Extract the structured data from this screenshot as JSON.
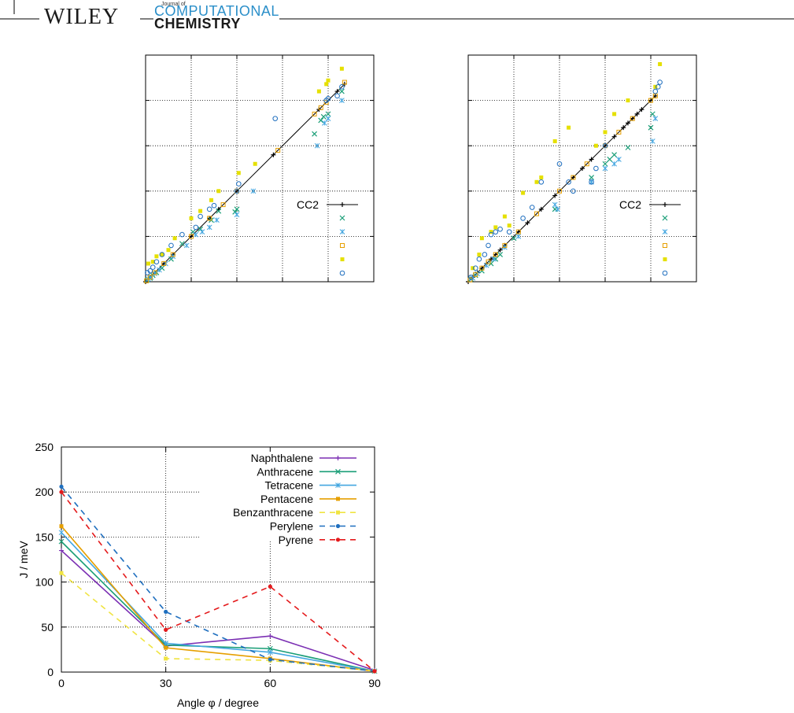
{
  "header": {
    "publisher": "WILEY",
    "journal_small": "Journal of",
    "journal_line1": "OMPUTATIONAL",
    "journal_line2": "HEMISTRY",
    "journal_initial": "C"
  },
  "chart_data": [
    {
      "type": "scatter",
      "title": "",
      "xlabel": "",
      "ylabel": "",
      "xlim": [
        0,
        250
      ],
      "ylim": [
        0,
        250
      ],
      "grid": true,
      "series": [
        {
          "name": "CC2",
          "kind": "line",
          "color": "#000000",
          "x": [
            0,
            5,
            10,
            20,
            30,
            50,
            70,
            80,
            100,
            140,
            190,
            210,
            218
          ],
          "y": [
            0,
            5,
            10,
            20,
            30,
            50,
            70,
            80,
            100,
            140,
            190,
            210,
            218
          ]
        },
        {
          "marker": "x",
          "color": "#1a9e77",
          "x": [
            2,
            5,
            8,
            12,
            18,
            28,
            40,
            52,
            60,
            72,
            80,
            98,
            100,
            185,
            192,
            195,
            200,
            215
          ],
          "y": [
            2,
            4,
            7,
            10,
            15,
            25,
            42,
            55,
            58,
            68,
            78,
            77,
            80,
            163,
            178,
            182,
            185,
            210
          ]
        },
        {
          "marker": "*",
          "color": "#43a6e0",
          "x": [
            3,
            6,
            10,
            15,
            22,
            30,
            45,
            55,
            62,
            70,
            78,
            100,
            118,
            188,
            196,
            200,
            215
          ],
          "y": [
            3,
            5,
            9,
            13,
            20,
            28,
            40,
            52,
            55,
            60,
            68,
            74,
            100,
            150,
            175,
            180,
            200
          ]
        },
        {
          "marker": "square-open",
          "color": "#e69f00",
          "x": [
            1,
            5,
            10,
            20,
            30,
            50,
            70,
            85,
            100,
            145,
            185,
            192,
            198,
            218
          ],
          "y": [
            1,
            5,
            10,
            20,
            30,
            50,
            70,
            85,
            100,
            145,
            185,
            192,
            198,
            220
          ]
        },
        {
          "marker": "square-filled",
          "color": "#e5e000",
          "x": [
            3,
            8,
            12,
            18,
            25,
            32,
            50,
            60,
            72,
            80,
            102,
            120,
            190,
            198,
            200,
            215
          ],
          "y": [
            20,
            22,
            28,
            30,
            35,
            48,
            70,
            78,
            90,
            100,
            120,
            130,
            210,
            218,
            222,
            235
          ]
        },
        {
          "marker": "circle-open",
          "color": "#1f6fbf",
          "x": [
            2,
            5,
            8,
            12,
            18,
            28,
            40,
            55,
            60,
            70,
            75,
            100,
            102,
            142,
            198,
            200,
            210,
            215
          ],
          "y": [
            10,
            12,
            16,
            22,
            30,
            40,
            52,
            60,
            72,
            80,
            84,
            100,
            108,
            180,
            200,
            202,
            205,
            215
          ]
        }
      ]
    },
    {
      "type": "scatter",
      "title": "",
      "xlabel": "",
      "ylabel": "",
      "xlim": [
        0,
        250
      ],
      "ylim": [
        0,
        250
      ],
      "grid": true,
      "series": [
        {
          "name": "CC2",
          "kind": "line",
          "color": "#000000",
          "x": [
            0,
            5,
            10,
            15,
            20,
            25,
            30,
            35,
            40,
            55,
            65,
            80,
            95,
            115,
            125,
            135,
            150,
            160,
            170,
            175,
            180,
            185,
            190,
            200,
            205
          ],
          "y": [
            0,
            5,
            10,
            15,
            20,
            25,
            30,
            35,
            40,
            55,
            65,
            80,
            95,
            115,
            125,
            135,
            150,
            160,
            170,
            175,
            180,
            185,
            190,
            200,
            205
          ]
        },
        {
          "marker": "x",
          "color": "#1a9e77",
          "x": [
            3,
            8,
            15,
            25,
            30,
            35,
            50,
            95,
            135,
            150,
            155,
            160,
            175,
            200,
            202
          ],
          "y": [
            3,
            7,
            12,
            20,
            25,
            30,
            48,
            80,
            115,
            130,
            135,
            140,
            148,
            170,
            185
          ]
        },
        {
          "marker": "*",
          "color": "#43a6e0",
          "x": [
            5,
            10,
            20,
            28,
            40,
            55,
            95,
            98,
            135,
            150,
            160,
            165,
            202,
            205
          ],
          "y": [
            4,
            9,
            18,
            25,
            38,
            50,
            85,
            80,
            110,
            125,
            130,
            135,
            155,
            180
          ]
        },
        {
          "marker": "square-open",
          "color": "#e69f00",
          "x": [
            2,
            8,
            15,
            22,
            30,
            40,
            55,
            75,
            100,
            115,
            130,
            150,
            165,
            180,
            200,
            205
          ],
          "y": [
            2,
            8,
            15,
            22,
            30,
            40,
            55,
            75,
            100,
            115,
            130,
            150,
            165,
            180,
            200,
            205
          ]
        },
        {
          "marker": "square-filled",
          "color": "#e5e000",
          "x": [
            5,
            12,
            15,
            25,
            30,
            40,
            45,
            60,
            75,
            80,
            95,
            110,
            140,
            150,
            160,
            175,
            205,
            210
          ],
          "y": [
            15,
            30,
            48,
            55,
            60,
            72,
            62,
            98,
            110,
            115,
            155,
            170,
            150,
            165,
            185,
            200,
            215,
            240
          ]
        },
        {
          "marker": "circle-open",
          "color": "#1f6fbf",
          "x": [
            3,
            8,
            12,
            18,
            22,
            25,
            30,
            35,
            45,
            60,
            70,
            80,
            100,
            110,
            115,
            135,
            140,
            150,
            205,
            208,
            210
          ],
          "y": [
            5,
            15,
            25,
            30,
            40,
            52,
            55,
            58,
            55,
            70,
            82,
            110,
            130,
            110,
            100,
            110,
            125,
            150,
            210,
            215,
            220
          ]
        }
      ]
    },
    {
      "type": "line",
      "title": "",
      "xlabel": "Angle φ / degree",
      "ylabel": "J / meV",
      "x": [
        0,
        30,
        60,
        90
      ],
      "xticks": [
        "0",
        "30",
        "60",
        "90"
      ],
      "yticks": [
        "0",
        "50",
        "100",
        "150",
        "200",
        "250"
      ],
      "xlim": [
        0,
        90
      ],
      "ylim": [
        0,
        250
      ],
      "grid": true,
      "legend_position": "top-right",
      "series": [
        {
          "name": "Naphthalene",
          "color": "#7b2fb3",
          "dash": "solid",
          "marker": "+",
          "values": [
            135,
            29,
            40,
            2
          ]
        },
        {
          "name": "Anthracene",
          "color": "#1a9e77",
          "dash": "solid",
          "marker": "x",
          "values": [
            145,
            30,
            26,
            1
          ]
        },
        {
          "name": "Tetracene",
          "color": "#43a6e0",
          "dash": "solid",
          "marker": "*",
          "values": [
            155,
            32,
            22,
            1
          ]
        },
        {
          "name": "Pentacene",
          "color": "#e69f00",
          "dash": "solid",
          "marker": "square",
          "values": [
            162,
            27,
            15,
            1
          ]
        },
        {
          "name": "Benzanthracene",
          "color": "#f0e442",
          "dash": "dashed",
          "marker": "square",
          "values": [
            110,
            15,
            13,
            1
          ]
        },
        {
          "name": "Perylene",
          "color": "#1f6fbf",
          "dash": "dashed",
          "marker": "circle",
          "values": [
            206,
            67,
            14,
            1
          ]
        },
        {
          "name": "Pyrene",
          "color": "#e41a1c",
          "dash": "dashed",
          "marker": "circle",
          "values": [
            200,
            47,
            95,
            1
          ]
        }
      ]
    }
  ]
}
